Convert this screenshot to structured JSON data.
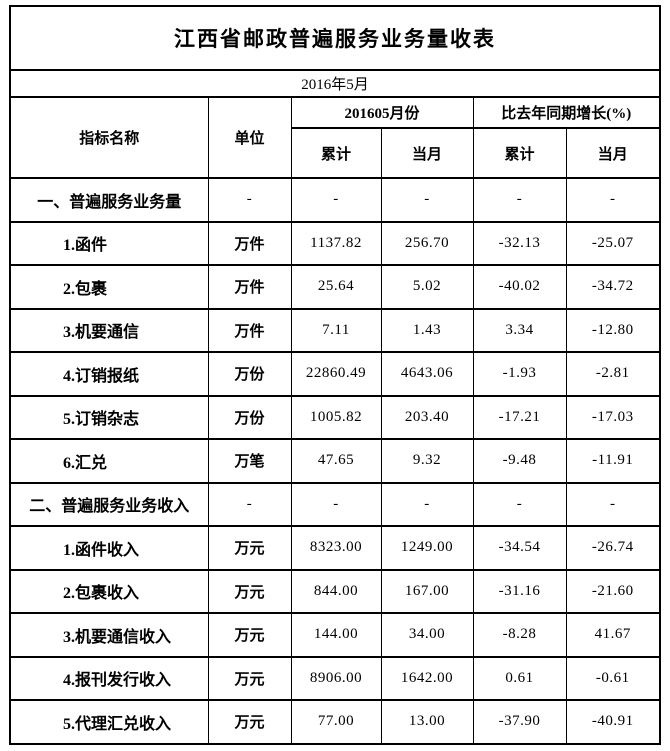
{
  "table": {
    "title": "江西省邮政普遍服务业务量收表",
    "subtitle": "2016年5月",
    "header": {
      "indicator": "指标名称",
      "unit": "单位",
      "group_month": "201605月份",
      "group_yoy": "比去年同期增长(%)",
      "sub": [
        "累计",
        "当月",
        "累计",
        "当月"
      ]
    },
    "rows": [
      {
        "section": true,
        "name": "一、普遍服务业务量",
        "unit": "-",
        "cum": "-",
        "month": "-",
        "yoy_cum": "-",
        "yoy_month": "-"
      },
      {
        "section": false,
        "name": "1.函件",
        "unit": "万件",
        "cum": "1137.82",
        "month": "256.70",
        "yoy_cum": "-32.13",
        "yoy_month": "-25.07"
      },
      {
        "section": false,
        "name": "2.包裹",
        "unit": "万件",
        "cum": "25.64",
        "month": "5.02",
        "yoy_cum": "-40.02",
        "yoy_month": "-34.72"
      },
      {
        "section": false,
        "name": "3.机要通信",
        "unit": "万件",
        "cum": "7.11",
        "month": "1.43",
        "yoy_cum": "3.34",
        "yoy_month": "-12.80"
      },
      {
        "section": false,
        "name": "4.订销报纸",
        "unit": "万份",
        "cum": "22860.49",
        "month": "4643.06",
        "yoy_cum": "-1.93",
        "yoy_month": "-2.81"
      },
      {
        "section": false,
        "name": "5.订销杂志",
        "unit": "万份",
        "cum": "1005.82",
        "month": "203.40",
        "yoy_cum": "-17.21",
        "yoy_month": "-17.03"
      },
      {
        "section": false,
        "name": "6.汇兑",
        "unit": "万笔",
        "cum": "47.65",
        "month": "9.32",
        "yoy_cum": "-9.48",
        "yoy_month": "-11.91"
      },
      {
        "section": true,
        "name": "二、普遍服务业务收入",
        "unit": "-",
        "cum": "-",
        "month": "-",
        "yoy_cum": "-",
        "yoy_month": "-"
      },
      {
        "section": false,
        "name": "1.函件收入",
        "unit": "万元",
        "cum": "8323.00",
        "month": "1249.00",
        "yoy_cum": "-34.54",
        "yoy_month": "-26.74"
      },
      {
        "section": false,
        "name": "2.包裹收入",
        "unit": "万元",
        "cum": "844.00",
        "month": "167.00",
        "yoy_cum": "-31.16",
        "yoy_month": "-21.60"
      },
      {
        "section": false,
        "name": "3.机要通信收入",
        "unit": "万元",
        "cum": "144.00",
        "month": "34.00",
        "yoy_cum": "-8.28",
        "yoy_month": "41.67"
      },
      {
        "section": false,
        "name": "4.报刊发行收入",
        "unit": "万元",
        "cum": "8906.00",
        "month": "1642.00",
        "yoy_cum": "0.61",
        "yoy_month": "-0.61"
      },
      {
        "section": false,
        "name": "5.代理汇兑收入",
        "unit": "万元",
        "cum": "77.00",
        "month": "13.00",
        "yoy_cum": "-37.90",
        "yoy_month": "-40.91"
      }
    ]
  }
}
